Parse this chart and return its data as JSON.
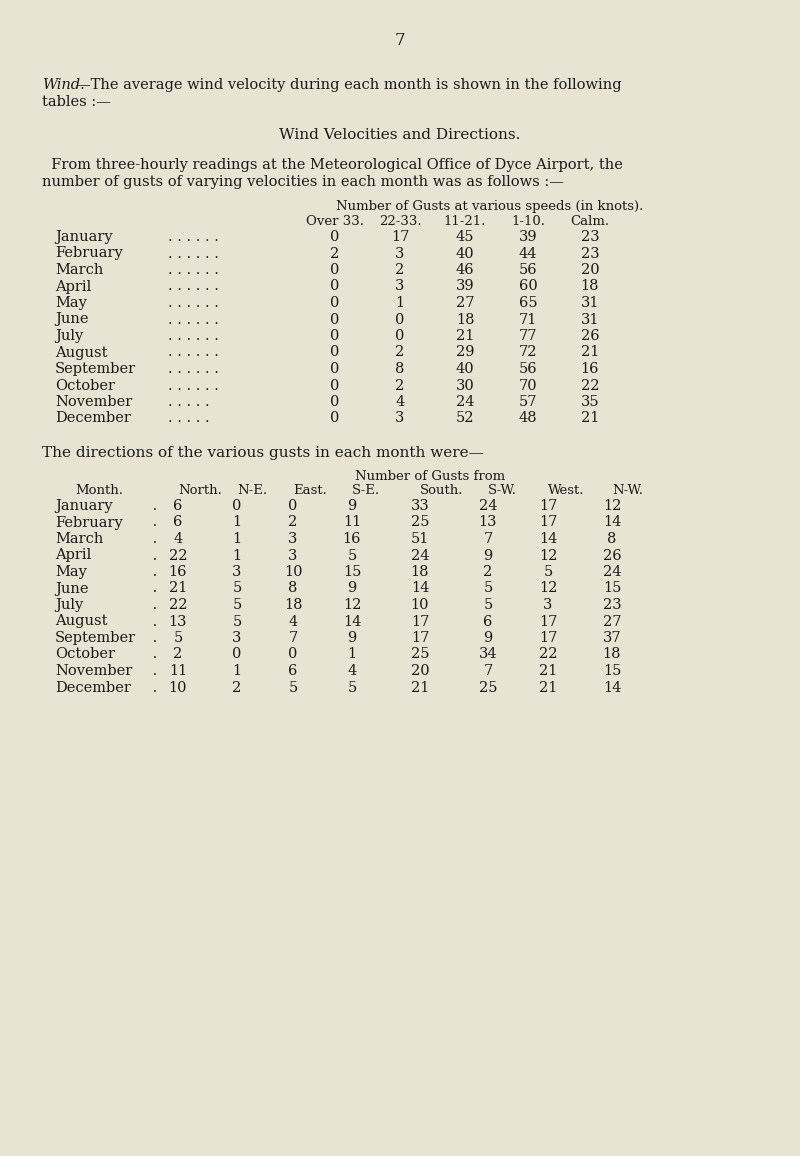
{
  "page_number": "7",
  "bg_color": "#e8e4d4",
  "text_color": "#1a1a1a",
  "intro_italic": "Wind.",
  "intro_rest": "—The average wind velocity during each month is shown in the following",
  "intro_text_line2": "tables :—",
  "section_title": "Wind Velocities and Directions.",
  "para_indent": "  From three-hourly readings at the Meteorological Office of Dyce Airport, the",
  "para_line2": "number of gusts of varying velocities in each month was as follows :—",
  "table1_header_row0": "Number of Gusts at various speeds (in knots).",
  "table1_header_row1": [
    "Over 33.",
    "22-33.",
    "11-21.",
    "1-10.",
    "Calm."
  ],
  "table1_months": [
    "January",
    "February",
    "March",
    "April",
    "May",
    "June",
    "July",
    "August",
    "September",
    "October",
    "November",
    "December"
  ],
  "table1_dots": [
    ". . . . . .",
    ". . . . . .",
    ". . . . . .",
    ". . . . . .",
    ". . . . . .",
    ". . . . . .",
    ". . . . . .",
    ". . . . . .",
    ". . . . . .",
    ". . . . . .",
    ". . . . .",
    ". . . . ."
  ],
  "table1_data": [
    [
      0,
      17,
      45,
      39,
      23
    ],
    [
      2,
      3,
      40,
      44,
      23
    ],
    [
      0,
      2,
      46,
      56,
      20
    ],
    [
      0,
      3,
      39,
      60,
      18
    ],
    [
      0,
      1,
      27,
      65,
      31
    ],
    [
      0,
      0,
      18,
      71,
      31
    ],
    [
      0,
      0,
      21,
      77,
      26
    ],
    [
      0,
      2,
      29,
      72,
      21
    ],
    [
      0,
      8,
      40,
      56,
      16
    ],
    [
      0,
      2,
      30,
      70,
      22
    ],
    [
      0,
      4,
      24,
      57,
      35
    ],
    [
      0,
      3,
      52,
      48,
      21
    ]
  ],
  "directions_intro": "The directions of the various gusts in each month were—",
  "table2_header_row0": "Number of Gusts from",
  "table2_col_headers": [
    "Month.",
    "North.",
    "N-E.",
    "East.",
    "S-E.",
    "South.",
    "S-W.",
    "West.",
    "N-W."
  ],
  "table2_months": [
    "January",
    "February",
    "March",
    "April",
    "May",
    "June",
    "July",
    "August",
    "September",
    "October",
    "November",
    "December"
  ],
  "table2_month_dots": [
    " .",
    " .",
    " .",
    " .",
    " .",
    " .",
    " .",
    " .",
    " .",
    " .",
    " .",
    " ."
  ],
  "table2_data": [
    [
      6,
      0,
      0,
      9,
      33,
      24,
      17,
      12
    ],
    [
      6,
      1,
      2,
      11,
      25,
      13,
      17,
      14
    ],
    [
      4,
      1,
      3,
      16,
      51,
      7,
      14,
      8
    ],
    [
      22,
      1,
      3,
      5,
      24,
      9,
      12,
      26
    ],
    [
      16,
      3,
      10,
      15,
      18,
      2,
      5,
      24
    ],
    [
      21,
      5,
      8,
      9,
      14,
      5,
      12,
      15
    ],
    [
      22,
      5,
      18,
      12,
      10,
      5,
      3,
      23
    ],
    [
      13,
      5,
      4,
      14,
      17,
      6,
      17,
      27
    ],
    [
      5,
      3,
      7,
      9,
      17,
      9,
      17,
      37
    ],
    [
      2,
      0,
      0,
      1,
      25,
      34,
      22,
      18
    ],
    [
      11,
      1,
      6,
      4,
      20,
      7,
      21,
      15
    ],
    [
      10,
      2,
      5,
      5,
      21,
      25,
      21,
      14
    ]
  ]
}
